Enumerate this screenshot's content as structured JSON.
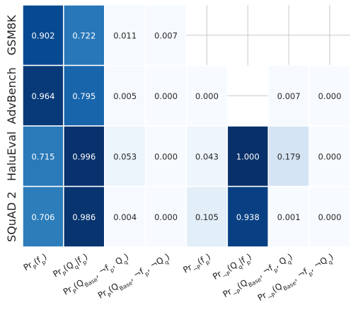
{
  "chart_data": {
    "type": "heatmap",
    "rows": [
      "GSM8K",
      "AdvBench",
      "HaluEval",
      "SQuAD 2"
    ],
    "columns": [
      "Pr_P(f_p)",
      "Pr_P(Q_q|f_p)",
      "Pr_P(Q_Base, ¬f_p, Q_q)",
      "Pr_P(Q_Base, ¬f_p, ¬Q_q)",
      "Pr_¬P(f_p)",
      "Pr_¬P(Q_q|f_p)",
      "Pr_¬P(Q_Base, ¬f_p, Q_q)",
      "Pr_¬P(Q_Base, ¬f_p, ¬Q_q)"
    ],
    "column_labels_math": [
      {
        "base": "Pr",
        "sub": "P",
        "arg": "(f",
        "argsub": "p",
        "rest": ")"
      },
      {
        "base": "Pr",
        "sub": "P",
        "arg": "(Q",
        "argsub": "q",
        "rest": "|f",
        "restsub": "p",
        "end": ")"
      },
      {
        "base": "Pr",
        "sub": "P",
        "arg": "(Q",
        "argsub": "Base",
        "rest": ", ¬f",
        "restsub": "p",
        "end": ", Q",
        "endsub": "q",
        "close": ")"
      },
      {
        "base": "Pr",
        "sub": "P",
        "arg": "(Q",
        "argsub": "Base",
        "rest": ", ¬f",
        "restsub": "p",
        "end": ", ¬Q",
        "endsub": "q",
        "close": ")"
      },
      {
        "base": "Pr",
        "sub": "¬P",
        "arg": "(f",
        "argsub": "p",
        "rest": ")"
      },
      {
        "base": "Pr",
        "sub": "¬P",
        "arg": "(Q",
        "argsub": "q",
        "rest": "|f",
        "restsub": "p",
        "end": ")"
      },
      {
        "base": "Pr",
        "sub": "¬P",
        "arg": "(Q",
        "argsub": "Base",
        "rest": ", ¬f",
        "restsub": "p",
        "end": ", Q",
        "endsub": "q",
        "close": ")"
      },
      {
        "base": "Pr",
        "sub": "¬P",
        "arg": "(Q",
        "argsub": "Base",
        "rest": ", ¬f",
        "restsub": "p",
        "end": ", ¬Q",
        "endsub": "q",
        "close": ")"
      }
    ],
    "values": [
      [
        0.902,
        0.722,
        0.011,
        0.007,
        null,
        null,
        null,
        null
      ],
      [
        0.964,
        0.795,
        0.005,
        0.0,
        0.0,
        null,
        0.007,
        0.0
      ],
      [
        0.715,
        0.996,
        0.053,
        0.0,
        0.043,
        1.0,
        0.179,
        0.0
      ],
      [
        0.706,
        0.986,
        0.004,
        0.0,
        0.105,
        0.938,
        0.001,
        0.0
      ]
    ],
    "colormap": "Blues",
    "vmin": 0,
    "vmax": 1,
    "missing_cells_style": "cross",
    "colorbar": false,
    "title": "",
    "xlabel": "",
    "ylabel": ""
  }
}
